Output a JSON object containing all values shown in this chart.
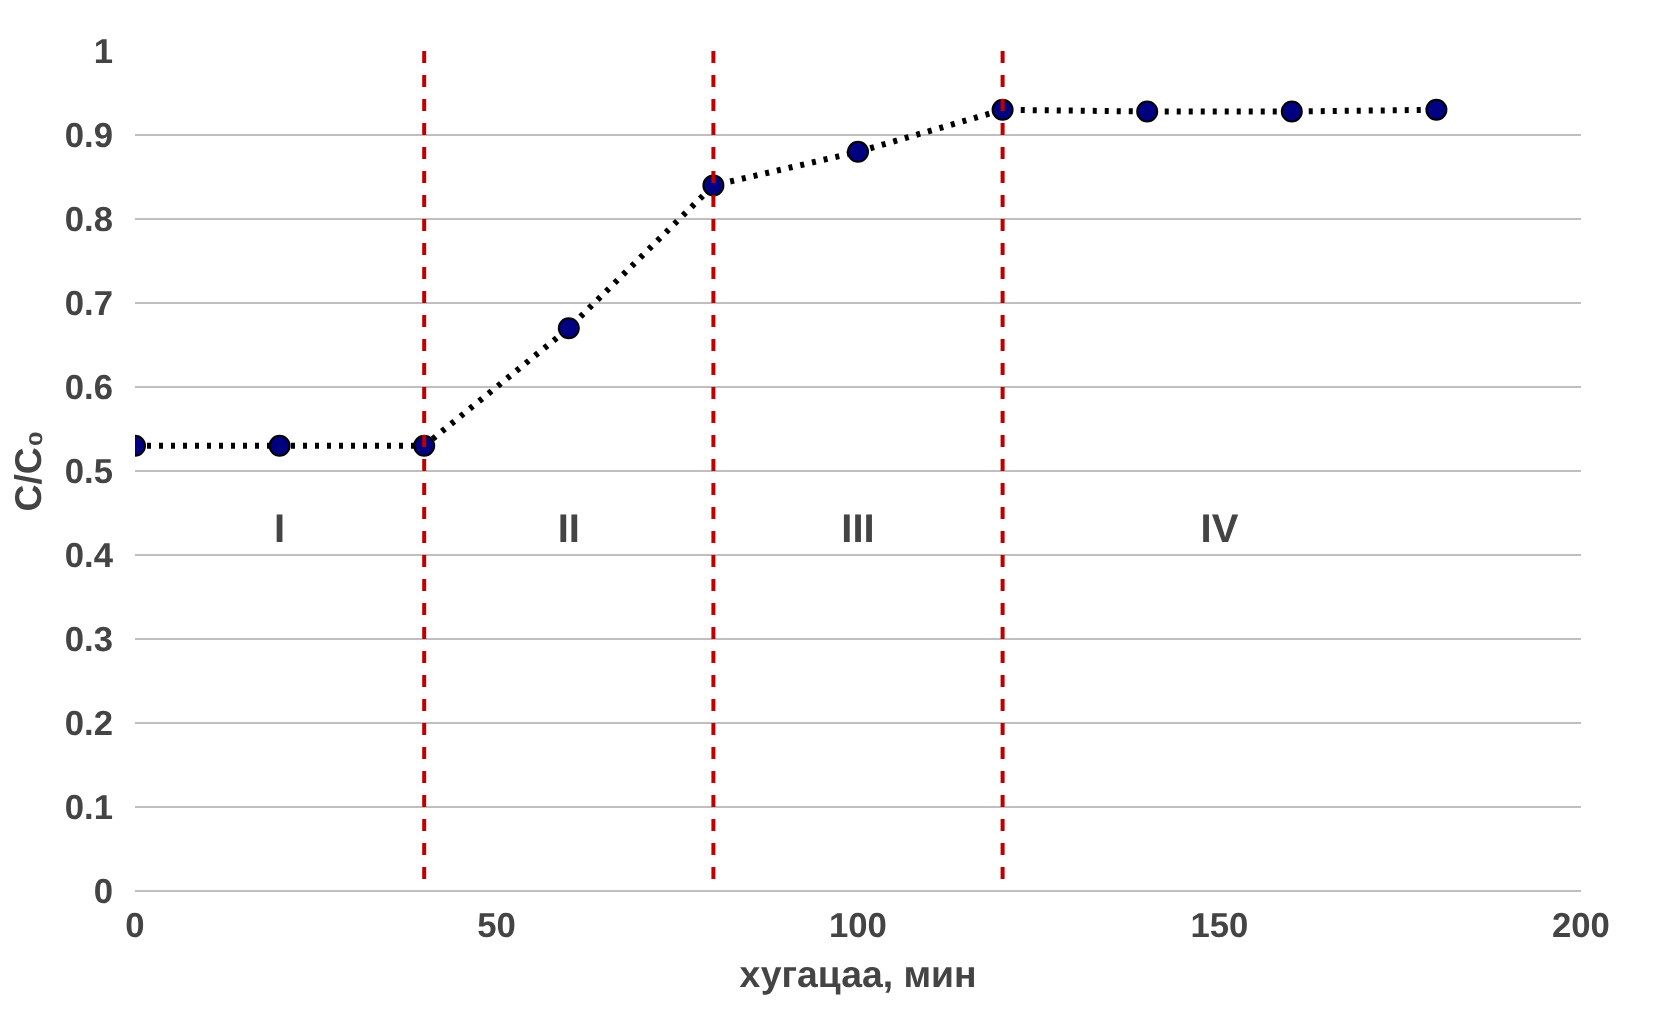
{
  "chart_data": {
    "type": "line",
    "xlabel": "хугацаа, мин",
    "ylabel": "C/C₀",
    "x": [
      0,
      20,
      40,
      60,
      80,
      100,
      120,
      140,
      160,
      180
    ],
    "series": [
      {
        "color": "#000080",
        "values": [
          0.53,
          0.53,
          0.53,
          0.67,
          0.84,
          0.88,
          0.93,
          0.928,
          0.928,
          0.93
        ]
      }
    ],
    "xlim": [
      0,
      200
    ],
    "xticks": [
      0,
      50,
      100,
      150,
      200
    ],
    "ylim": [
      0,
      1
    ],
    "yticks": [
      0,
      {
        "value": 0.1,
        "label": "0.1"
      },
      {
        "value": 0.2,
        "label": "0.2"
      },
      {
        "value": 0.3,
        "label": "0.3"
      },
      {
        "value": 0.4,
        "label": "0.4"
      },
      {
        "value": 0.5,
        "label": "0.5"
      },
      {
        "value": 0.6,
        "label": "0.6"
      },
      {
        "value": 0.7,
        "label": "0.7"
      },
      {
        "value": 0.8,
        "label": "0.8"
      },
      {
        "value": 0.9,
        "label": "0.9"
      },
      1
    ],
    "grid": "y",
    "marker": "circle",
    "line_style": "dotted",
    "ref_lines": [
      {
        "axis": "x",
        "value": 40,
        "color": "#c00000",
        "line_style": "dashed"
      },
      {
        "axis": "x",
        "value": 80,
        "color": "#c00000",
        "line_style": "dashed"
      },
      {
        "axis": "x",
        "value": 120,
        "color": "#c00000",
        "line_style": "dashed"
      }
    ],
    "annotations": [
      "I",
      "II",
      "III",
      "IV"
    ]
  }
}
